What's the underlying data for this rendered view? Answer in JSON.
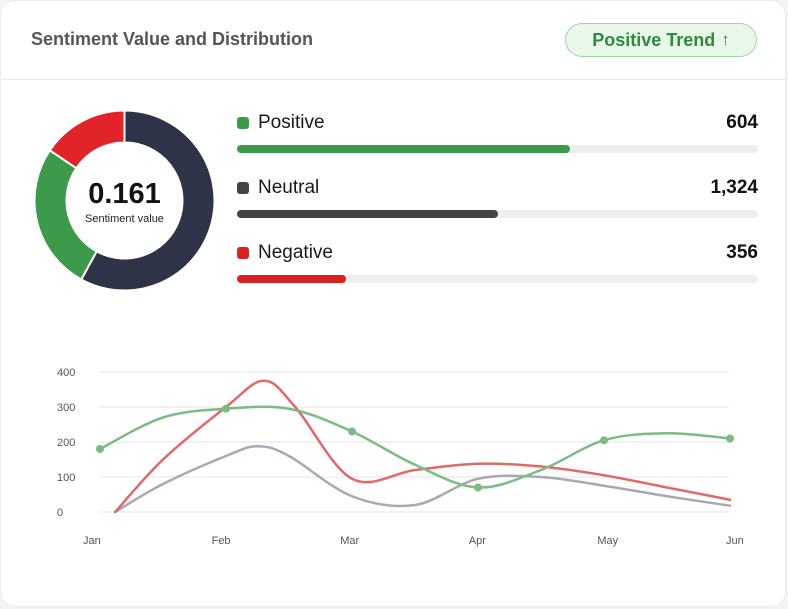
{
  "header": {
    "title": "Sentiment Value and Distribution",
    "badge_label": "Positive Trend",
    "badge_arrow": "↑"
  },
  "donut": {
    "value": "0.161",
    "label": "Sentiment value"
  },
  "stats": [
    {
      "name": "Positive",
      "count": "604",
      "color": "#3d9a4a",
      "fill_fraction": 0.64
    },
    {
      "name": "Neutral",
      "count": "1,324",
      "color": "#444444",
      "fill_fraction": 0.5
    },
    {
      "name": "Negative",
      "count": "356",
      "color": "#d62222",
      "fill_fraction": 0.21
    }
  ],
  "colors": {
    "positive": "#3d9a4a",
    "neutral": "#2e3347",
    "negative": "#e0242a",
    "line_positive": "#7dbb83",
    "line_negative": "#e06a6a",
    "line_neutral": "#a9a8b4"
  },
  "chart_data": {
    "type": "line",
    "categories": [
      "Jan",
      "Feb",
      "Mar",
      "Apr",
      "May",
      "Jun"
    ],
    "yticks": [
      "0",
      "100",
      "200",
      "300",
      "400"
    ],
    "ylim": [
      0,
      400
    ],
    "grid": true,
    "donut_segments": [
      {
        "label": "Positive",
        "value": 604
      },
      {
        "label": "Neutral",
        "value": 1324
      },
      {
        "label": "Negative",
        "value": 356
      }
    ],
    "series": [
      {
        "key": "positive",
        "markers": true,
        "points": [
          [
            0,
            180
          ],
          [
            0.5,
            270
          ],
          [
            1,
            295
          ],
          [
            1.5,
            295
          ],
          [
            2,
            230
          ],
          [
            2.5,
            135
          ],
          [
            3,
            70
          ],
          [
            3.5,
            120
          ],
          [
            4,
            205
          ],
          [
            4.5,
            225
          ],
          [
            5,
            210
          ]
        ]
      },
      {
        "key": "negative",
        "markers": false,
        "points": [
          [
            0.12,
            0
          ],
          [
            0.5,
            150
          ],
          [
            1,
            300
          ],
          [
            1.3,
            375
          ],
          [
            1.55,
            300
          ],
          [
            2,
            95
          ],
          [
            2.5,
            120
          ],
          [
            3,
            138
          ],
          [
            3.5,
            130
          ],
          [
            4,
            105
          ],
          [
            4.5,
            70
          ],
          [
            5,
            35
          ]
        ]
      },
      {
        "key": "neutral",
        "markers": false,
        "points": [
          [
            0.12,
            0
          ],
          [
            0.5,
            80
          ],
          [
            1,
            160
          ],
          [
            1.25,
            188
          ],
          [
            1.5,
            160
          ],
          [
            2,
            45
          ],
          [
            2.5,
            20
          ],
          [
            3,
            95
          ],
          [
            3.5,
            100
          ],
          [
            4,
            75
          ],
          [
            4.5,
            45
          ],
          [
            5,
            18
          ]
        ]
      }
    ]
  }
}
